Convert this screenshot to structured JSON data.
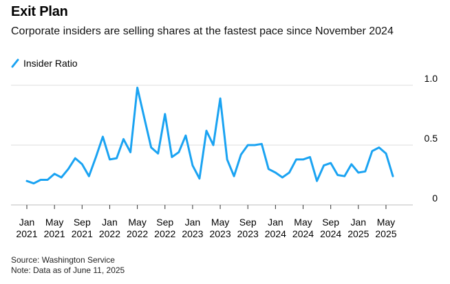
{
  "title": "Exit Plan",
  "subtitle": "Corporate insiders are selling shares at the fastest pace since November 2024",
  "legend": {
    "label": "Insider Ratio",
    "color": "#1aa3f2"
  },
  "source": "Source: Washington Service",
  "note": "Note: Data as of June 11, 2025",
  "chart_data": {
    "type": "line",
    "title": "Exit Plan",
    "subtitle": "Corporate insiders are selling shares at the fastest pace since November 2024",
    "xlabel": "",
    "ylabel": "",
    "ylim": [
      0,
      1.0
    ],
    "yticks": [
      {
        "value": 1.0,
        "label": "1.0"
      },
      {
        "value": 0.5,
        "label": "0.5"
      },
      {
        "value": 0,
        "label": "0"
      }
    ],
    "xticks": [
      {
        "index": 0,
        "line1": "Jan",
        "line2": "2021"
      },
      {
        "index": 4,
        "line1": "May",
        "line2": "2021"
      },
      {
        "index": 8,
        "line1": "Sep",
        "line2": "2021"
      },
      {
        "index": 12,
        "line1": "Jan",
        "line2": "2022"
      },
      {
        "index": 16,
        "line1": "May",
        "line2": "2022"
      },
      {
        "index": 20,
        "line1": "Sep",
        "line2": "2022"
      },
      {
        "index": 24,
        "line1": "Jan",
        "line2": "2023"
      },
      {
        "index": 28,
        "line1": "May",
        "line2": "2023"
      },
      {
        "index": 32,
        "line1": "Sep",
        "line2": "2023"
      },
      {
        "index": 36,
        "line1": "Jan",
        "line2": "2024"
      },
      {
        "index": 40,
        "line1": "May",
        "line2": "2024"
      },
      {
        "index": 44,
        "line1": "Sep",
        "line2": "2024"
      },
      {
        "index": 48,
        "line1": "Jan",
        "line2": "2025"
      },
      {
        "index": 52,
        "line1": "May",
        "line2": "2025"
      }
    ],
    "grid": true,
    "legend_position": "top-left",
    "series": [
      {
        "name": "Insider Ratio",
        "color": "#1aa3f2",
        "x": [
          "2021-01",
          "2021-02",
          "2021-03",
          "2021-04",
          "2021-05",
          "2021-06",
          "2021-07",
          "2021-08",
          "2021-09",
          "2021-10",
          "2021-11",
          "2021-12",
          "2022-01",
          "2022-02",
          "2022-03",
          "2022-04",
          "2022-05",
          "2022-06",
          "2022-07",
          "2022-08",
          "2022-09",
          "2022-10",
          "2022-11",
          "2022-12",
          "2023-01",
          "2023-02",
          "2023-03",
          "2023-04",
          "2023-05",
          "2023-06",
          "2023-07",
          "2023-08",
          "2023-09",
          "2023-10",
          "2023-11",
          "2023-12",
          "2024-01",
          "2024-02",
          "2024-03",
          "2024-04",
          "2024-05",
          "2024-06",
          "2024-07",
          "2024-08",
          "2024-09",
          "2024-10",
          "2024-11",
          "2024-12",
          "2025-01",
          "2025-02",
          "2025-03",
          "2025-04",
          "2025-05",
          "2025-06"
        ],
        "values": [
          0.2,
          0.18,
          0.21,
          0.21,
          0.26,
          0.23,
          0.3,
          0.39,
          0.34,
          0.24,
          0.4,
          0.57,
          0.38,
          0.39,
          0.55,
          0.44,
          0.98,
          0.73,
          0.48,
          0.43,
          0.76,
          0.4,
          0.44,
          0.58,
          0.33,
          0.22,
          0.62,
          0.5,
          0.89,
          0.38,
          0.24,
          0.42,
          0.5,
          0.5,
          0.51,
          0.3,
          0.27,
          0.23,
          0.27,
          0.38,
          0.38,
          0.4,
          0.2,
          0.33,
          0.35,
          0.25,
          0.24,
          0.34,
          0.27,
          0.28,
          0.45,
          0.48,
          0.43,
          0.24
        ]
      }
    ]
  }
}
